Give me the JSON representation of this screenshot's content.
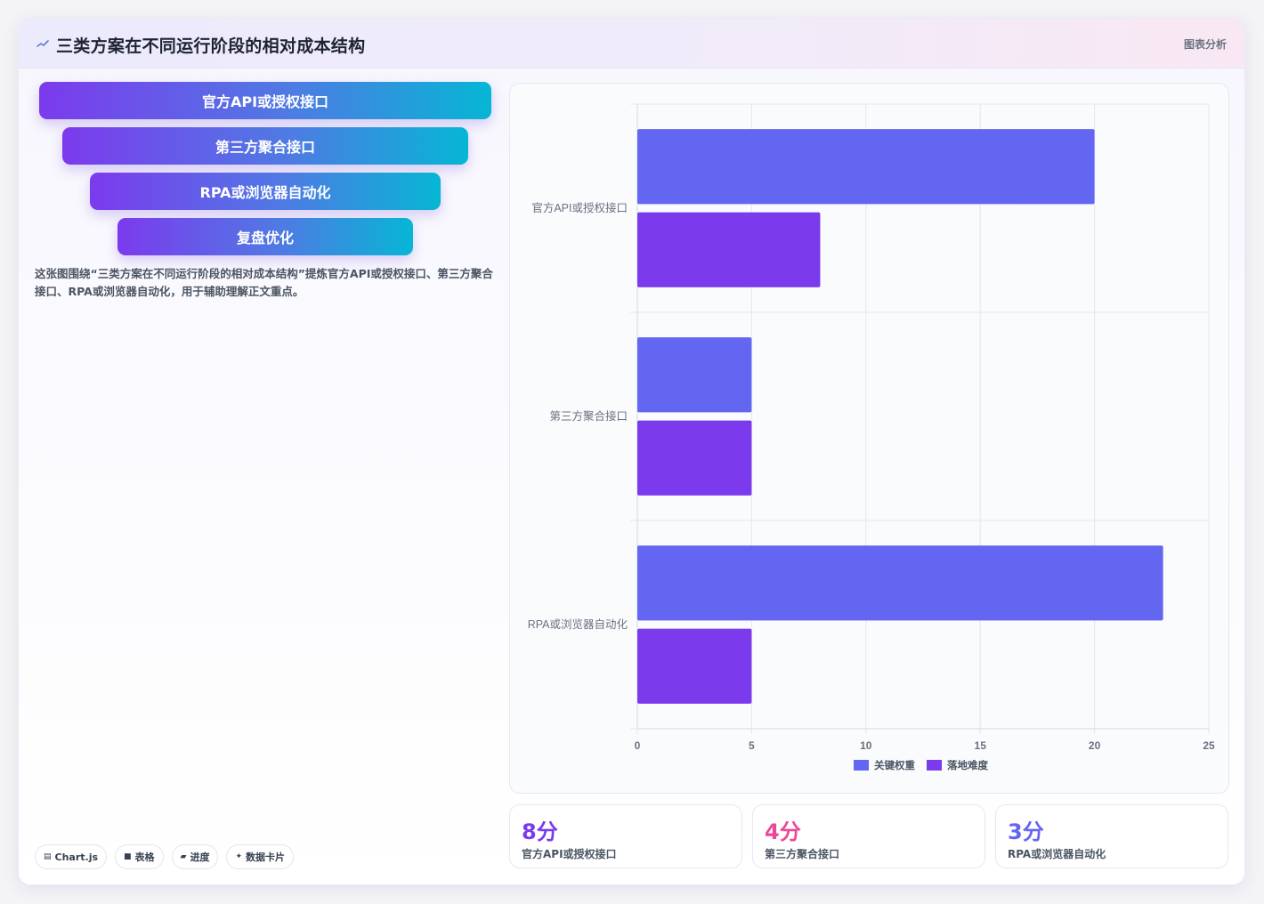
{
  "header": {
    "title": "三类方案在不同运行阶段的相对成本结构",
    "tag": "图表分析"
  },
  "funnel": {
    "steps": [
      "官方API或授权接口",
      "第三方聚合接口",
      "RPA或浏览器自动化",
      "复盘优化"
    ]
  },
  "description": "这张图围绕“三类方案在不同运行阶段的相对成本结构”提炼官方API或授权接口、第三方聚合接口、RPA或浏览器自动化，用于辅助理解正文重点。",
  "chips": [
    {
      "icon": "chart-icon",
      "glyph": "▤",
      "label": "Chart.js"
    },
    {
      "icon": "table-icon",
      "glyph": "■",
      "label": "表格"
    },
    {
      "icon": "progress-icon",
      "glyph": "▰",
      "label": "进度"
    },
    {
      "icon": "sparkle-icon",
      "glyph": "✦",
      "label": "数据卡片"
    }
  ],
  "chart_data": {
    "type": "bar",
    "orientation": "horizontal",
    "categories": [
      "官方API或授权接口",
      "第三方聚合接口",
      "RPA或浏览器自动化"
    ],
    "series": [
      {
        "name": "关键权重",
        "values": [
          20,
          5,
          23
        ],
        "color": "#6366f1"
      },
      {
        "name": "落地难度",
        "values": [
          8,
          5,
          5
        ],
        "color": "#7c3aed"
      }
    ],
    "xlim": [
      0,
      25
    ],
    "xticks": [
      0,
      5,
      10,
      15,
      20,
      25
    ],
    "grid": true,
    "legend": "bottom"
  },
  "stats": [
    {
      "value": "8分",
      "label": "官方API或授权接口",
      "color": "#7c3aed"
    },
    {
      "value": "4分",
      "label": "第三方聚合接口",
      "color": "#ec4899"
    },
    {
      "value": "3分",
      "label": "RPA或浏览器自动化",
      "color": "#6366f1"
    }
  ]
}
